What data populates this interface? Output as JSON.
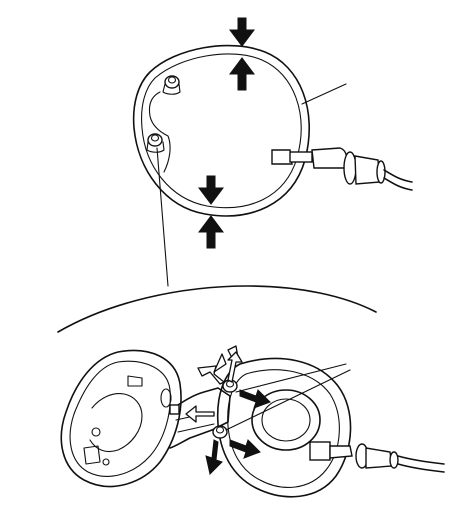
{
  "figure": {
    "callout_labels": []
  }
}
